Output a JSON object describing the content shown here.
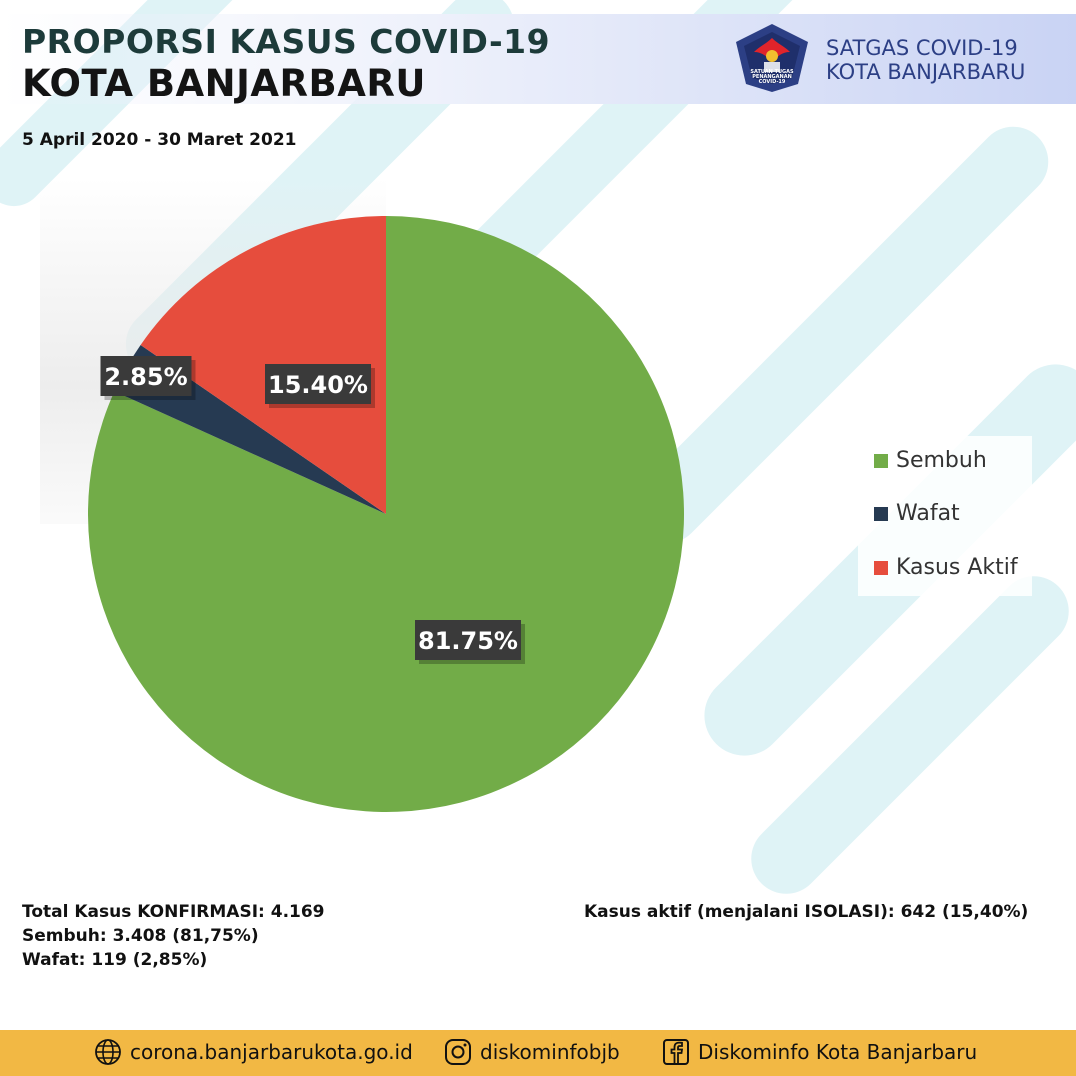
{
  "header": {
    "title_line1": "PROPORSI KASUS COVID-19",
    "title_line2": "KOTA BANJARBARU",
    "date_range": "5 April 2020 - 30 Maret 2021",
    "org_line1": "SATGAS COVID-19",
    "org_line2": "KOTA BANJARBARU",
    "logo_text": "SATUAN TUGAS PENANGANAN COVID-19"
  },
  "chart_data": {
    "type": "pie",
    "title": "",
    "labels": [
      "Sembuh",
      "Wafat",
      "Kasus Aktif"
    ],
    "values": [
      81.75,
      2.85,
      15.4
    ],
    "data_labels": [
      "81.75%",
      "2.85%",
      "15.40%"
    ],
    "colors": [
      "#72ac48",
      "#263a52",
      "#e64d3d"
    ],
    "start_angle": "12 o'clock, clockwise",
    "legend_position": "right"
  },
  "legend": {
    "items": [
      {
        "label": "Sembuh",
        "color": "#72ac48"
      },
      {
        "label": "Wafat",
        "color": "#263a52"
      },
      {
        "label": "Kasus Aktif",
        "color": "#e64d3d"
      }
    ]
  },
  "stats": {
    "total": "Total Kasus KONFIRMASI: 4.169",
    "recovered": "Sembuh: 3.408 (81,75%)",
    "deaths": "Wafat: 119 (2,85%)",
    "active": "Kasus aktif (menjalani ISOLASI): 642 (15,40%)"
  },
  "footer": {
    "website": "corona.banjarbarukota.go.id",
    "instagram": "diskominfobjb",
    "facebook": "Diskominfo Kota Banjarbaru"
  }
}
